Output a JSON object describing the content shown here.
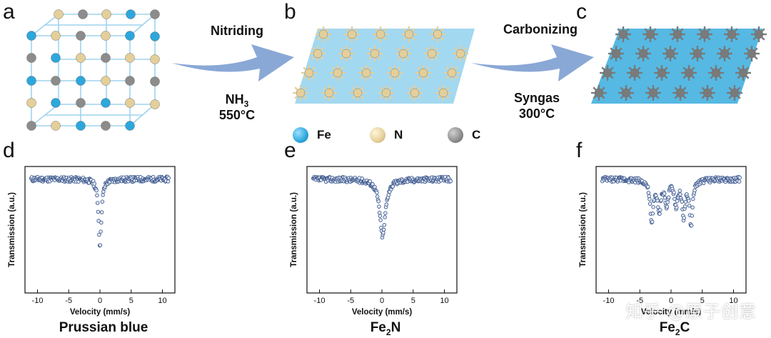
{
  "panels": {
    "a": "a",
    "b": "b",
    "c": "c",
    "d": "d",
    "e": "e",
    "f": "f"
  },
  "steps": {
    "nitriding": {
      "title": "Nitriding",
      "gas_main": "NH",
      "gas_sub": "3",
      "temp": "550°C"
    },
    "carbonizing": {
      "title": "Carbonizing",
      "gas": "Syngas",
      "temp": "300°C"
    }
  },
  "legend": [
    {
      "label": "Fe",
      "color": "#2ca7dc"
    },
    {
      "label": "N",
      "color": "#e4cf9a"
    },
    {
      "label": "C",
      "color": "#8c8c8c"
    }
  ],
  "captions": {
    "d": {
      "text": "Prussian blue"
    },
    "e": {
      "main": "Fe",
      "sub": "2",
      "tail": "N"
    },
    "f": {
      "main": "Fe",
      "sub": "2",
      "tail": "C"
    }
  },
  "watermark": "知乎 @原子创意",
  "colors": {
    "arrow": "#8aa8d6",
    "marker": "#3f5a8f",
    "fe": "#2ca7dc",
    "n": "#e4cf9a",
    "c": "#8c8c8c"
  },
  "chart_data": [
    {
      "type": "scatter",
      "title": "",
      "xlabel": "Velocity (mm/s)",
      "ylabel": "Transmission (a.u.)",
      "xlim": [
        -12,
        12
      ],
      "xticks": [
        -10,
        -5,
        0,
        5,
        10
      ],
      "ylim": [
        0,
        1
      ],
      "series": [
        {
          "profile": "singlet",
          "center": 0.0,
          "depth": 0.52,
          "width": 0.28
        }
      ]
    },
    {
      "type": "scatter",
      "title": "",
      "xlabel": "Velocity (mm/s)",
      "ylabel": "Transmission (a.u.)",
      "xlim": [
        -12,
        12
      ],
      "xticks": [
        -10,
        -5,
        0,
        5,
        10
      ],
      "ylim": [
        0,
        1
      ],
      "series": [
        {
          "profile": "singlet",
          "center": 0.1,
          "depth": 0.45,
          "width": 0.55
        }
      ]
    },
    {
      "type": "scatter",
      "title": "",
      "xlabel": "Velocity (mm/s)",
      "ylabel": "Transmission (a.u.)",
      "xlim": [
        -12,
        12
      ],
      "xticks": [
        -10,
        -5,
        0,
        5,
        10
      ],
      "ylim": [
        0,
        1
      ],
      "series": [
        {
          "profile": "sextet",
          "lines": [
            -3.1,
            -1.9,
            -0.7,
            0.8,
            2.0,
            3.2
          ],
          "depths": [
            0.34,
            0.25,
            0.2,
            0.2,
            0.27,
            0.35
          ],
          "width": 0.3
        }
      ]
    }
  ]
}
